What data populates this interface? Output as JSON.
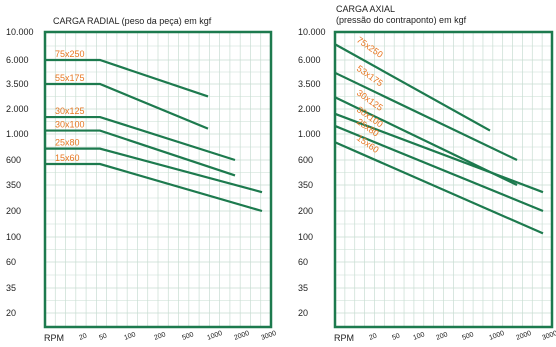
{
  "colors": {
    "frame": "#1d7a4e",
    "line": "#1d7a4e",
    "grid": "#c8ddd2",
    "series_label": "#e87722",
    "text": "#222222"
  },
  "chart_data": [
    {
      "type": "line",
      "title": "CARGA RADIAL (peso da peça) em kgf",
      "subtitle": "",
      "y_scale": "categorical",
      "y_ticks": [
        "10.000",
        "6.000",
        "3.500",
        "2.000",
        "1.000",
        "600",
        "350",
        "200",
        "100",
        "60",
        "35",
        "20"
      ],
      "x_axis_label": "RPM",
      "x_ticks": [
        "20",
        "50",
        "100",
        "200",
        "500",
        "1000",
        "2000",
        "3000"
      ],
      "series": [
        {
          "name": "75x250",
          "points": [
            [
              "20",
              "6.000"
            ],
            [
              "50",
              "6.000"
            ],
            [
              "1000",
              "2.650"
            ]
          ]
        },
        {
          "name": "55x175",
          "points": [
            [
              "20",
              "3.500"
            ],
            [
              "50",
              "3.500"
            ],
            [
              "1000",
              "1.160"
            ]
          ]
        },
        {
          "name": "30x125",
          "points": [
            [
              "20",
              "1.600"
            ],
            [
              "50",
              "1.600"
            ],
            [
              "2000",
              "600"
            ]
          ]
        },
        {
          "name": "30x100",
          "points": [
            [
              "20",
              "1.100"
            ],
            [
              "50",
              "1.100"
            ],
            [
              "2000",
              "430"
            ]
          ]
        },
        {
          "name": "25x80",
          "points": [
            [
              "20",
              "750"
            ],
            [
              "50",
              "750"
            ],
            [
              "3000",
              "300"
            ]
          ]
        },
        {
          "name": "15x60",
          "points": [
            [
              "20",
              "550"
            ],
            [
              "50",
              "550"
            ],
            [
              "3000",
              "200"
            ]
          ]
        }
      ],
      "grid": true
    },
    {
      "type": "line",
      "title": "CARGA AXIAL",
      "subtitle": "(pressão do contraponto) em kgf",
      "y_scale": "categorical",
      "y_ticks": [
        "10.000",
        "6.000",
        "3.500",
        "2.000",
        "1.000",
        "600",
        "350",
        "200",
        "100",
        "60",
        "35",
        "20"
      ],
      "x_axis_label": "RPM",
      "x_ticks": [
        "20",
        "50",
        "100",
        "200",
        "500",
        "1000",
        "2000",
        "3000"
      ],
      "series": [
        {
          "name": "75x250",
          "points": [
            [
              "20",
              "8.000"
            ],
            [
              "1000",
              "1.100"
            ]
          ]
        },
        {
          "name": "53x175",
          "points": [
            [
              "20",
              "4.500"
            ],
            [
              "2000",
              "600"
            ]
          ]
        },
        {
          "name": "30x125",
          "points": [
            [
              "20",
              "2.600"
            ],
            [
              "2000",
              "350"
            ]
          ]
        },
        {
          "name": "30x100",
          "points": [
            [
              "20",
              "1.750"
            ],
            [
              "3000",
              "300"
            ]
          ]
        },
        {
          "name": "25x80",
          "points": [
            [
              "20",
              "1.250"
            ],
            [
              "3000",
              "200"
            ]
          ]
        },
        {
          "name": "15x60",
          "points": [
            [
              "20",
              "850"
            ],
            [
              "3000",
              "110"
            ]
          ]
        }
      ],
      "grid": true
    }
  ]
}
